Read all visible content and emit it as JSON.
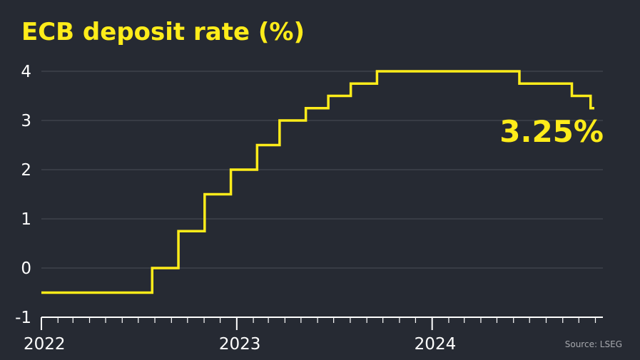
{
  "chart_data": {
    "type": "line",
    "title": "ECB deposit rate (%)",
    "xlabel": "",
    "ylabel": "",
    "ylim": [
      -1,
      4
    ],
    "yticks": [
      "4",
      "3",
      "2",
      "1",
      "0",
      "-1"
    ],
    "xlim": [
      "2022-01-01",
      "2024-11-15"
    ],
    "xticks": [
      "2022",
      "2023",
      "2024"
    ],
    "grid": true,
    "step": true,
    "series": [
      {
        "color": "#ffec1a",
        "points": [
          {
            "x": "2022-01-01",
            "y": -0.5
          },
          {
            "x": "2022-07-27",
            "y": 0.0
          },
          {
            "x": "2022-09-14",
            "y": 0.75
          },
          {
            "x": "2022-11-02",
            "y": 1.5
          },
          {
            "x": "2022-12-21",
            "y": 2.0
          },
          {
            "x": "2023-02-08",
            "y": 2.5
          },
          {
            "x": "2023-03-22",
            "y": 3.0
          },
          {
            "x": "2023-05-10",
            "y": 3.25
          },
          {
            "x": "2023-06-21",
            "y": 3.5
          },
          {
            "x": "2023-08-02",
            "y": 3.75
          },
          {
            "x": "2023-09-20",
            "y": 4.0
          },
          {
            "x": "2024-06-12",
            "y": 3.75
          },
          {
            "x": "2024-09-18",
            "y": 3.5
          },
          {
            "x": "2024-10-23",
            "y": 3.25
          },
          {
            "x": "2024-10-30",
            "y": 3.25
          }
        ]
      }
    ],
    "annotation": "3.25%",
    "source": "Source: LSEG"
  },
  "colors": {
    "background": "#262a33",
    "accent": "#ffec1a",
    "grid": "#4a4e57",
    "text": "#ffffff",
    "muted": "#a6a8ad"
  }
}
